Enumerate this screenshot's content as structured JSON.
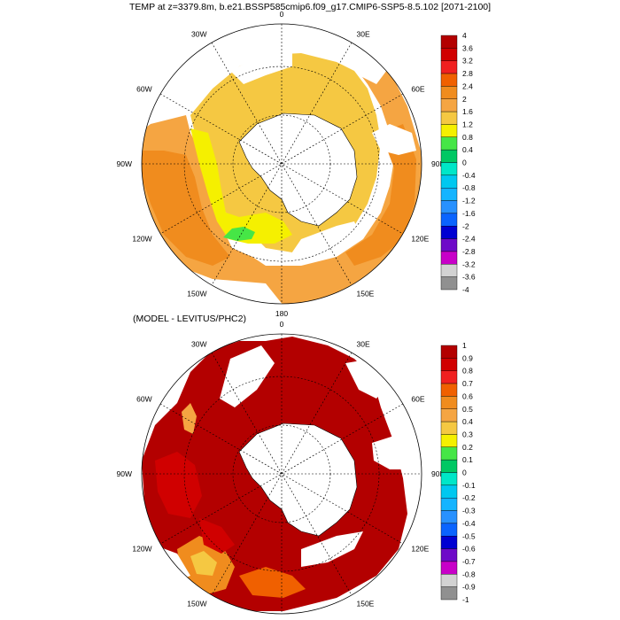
{
  "title": "TEMP at z=3379.8m, b.e21.BSSP585cmip6.f09_g17.CMIP6-SSP5-8.5.102 [2071-2100]",
  "subtitle": "(MODEL - LEVITUS/PHC2)",
  "longitude_labels": [
    "0",
    "30E",
    "60E",
    "90E",
    "120E",
    "150E",
    "180",
    "150W",
    "120W",
    "90W",
    "60W",
    "30W"
  ],
  "colors": {
    "land": "#ffffff",
    "missing": "#ffffff",
    "outline": "#000000"
  },
  "top_map": {
    "colorbar": {
      "labels": [
        "4",
        "3.6",
        "3.2",
        "2.8",
        "2.4",
        "2",
        "1.6",
        "1.2",
        "0.8",
        "0.4",
        "0",
        "-0.4",
        "-0.8",
        "-1.2",
        "-1.6",
        "-2",
        "-2.4",
        "-2.8",
        "-3.2",
        "-3.6",
        "-4"
      ],
      "colors": [
        "#b30000",
        "#d00000",
        "#f02020",
        "#f06000",
        "#f08c1e",
        "#f5a542",
        "#f5c842",
        "#f5f000",
        "#46e646",
        "#00c864",
        "#00e6c8",
        "#00c8f0",
        "#14b4ff",
        "#2891ff",
        "#0a64ff",
        "#0000d2",
        "#6e0ac8",
        "#c800c8",
        "#d2d2d2",
        "#909090"
      ]
    }
  },
  "bottom_map": {
    "colorbar": {
      "labels": [
        "1",
        "0.9",
        "0.8",
        "0.7",
        "0.6",
        "0.5",
        "0.4",
        "0.3",
        "0.2",
        "0.1",
        "0",
        "-0.1",
        "-0.2",
        "-0.3",
        "-0.4",
        "-0.5",
        "-0.6",
        "-0.7",
        "-0.8",
        "-0.9",
        "-1"
      ],
      "colors": [
        "#b30000",
        "#d00000",
        "#f02020",
        "#f06000",
        "#f08c1e",
        "#f5a542",
        "#f5c842",
        "#f5f000",
        "#46e646",
        "#00c864",
        "#00e6c8",
        "#00c8f0",
        "#14b4ff",
        "#2891ff",
        "#0a64ff",
        "#0000d2",
        "#6e0ac8",
        "#c800c8",
        "#d2d2d2",
        "#909090"
      ]
    }
  }
}
